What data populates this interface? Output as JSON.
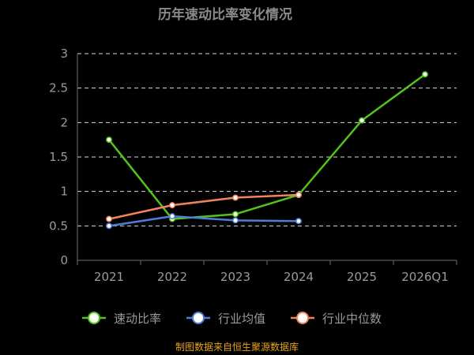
{
  "chart_data": {
    "type": "line",
    "title": "历年速动比率变化情况",
    "categories": [
      "2021",
      "2022",
      "2023",
      "2024",
      "2025",
      "2026Q1"
    ],
    "ylim": [
      0,
      3
    ],
    "yticks": [
      "0",
      "0.5",
      "1",
      "1.5",
      "2",
      "2.5",
      "3"
    ],
    "grid": true,
    "legend": "bottom",
    "series": [
      {
        "name": "速动比率",
        "color": "#52c41a",
        "values": [
          1.75,
          0.6,
          0.67,
          0.95,
          2.03,
          2.7
        ]
      },
      {
        "name": "行业均值",
        "color": "#4f7ed8",
        "values": [
          0.5,
          0.64,
          0.58,
          0.57,
          null,
          null
        ]
      },
      {
        "name": "行业中位数",
        "color": "#f0845a",
        "values": [
          0.6,
          0.8,
          0.91,
          0.95,
          null,
          null
        ]
      }
    ]
  },
  "source": "制图数据来自恒生聚源数据库"
}
